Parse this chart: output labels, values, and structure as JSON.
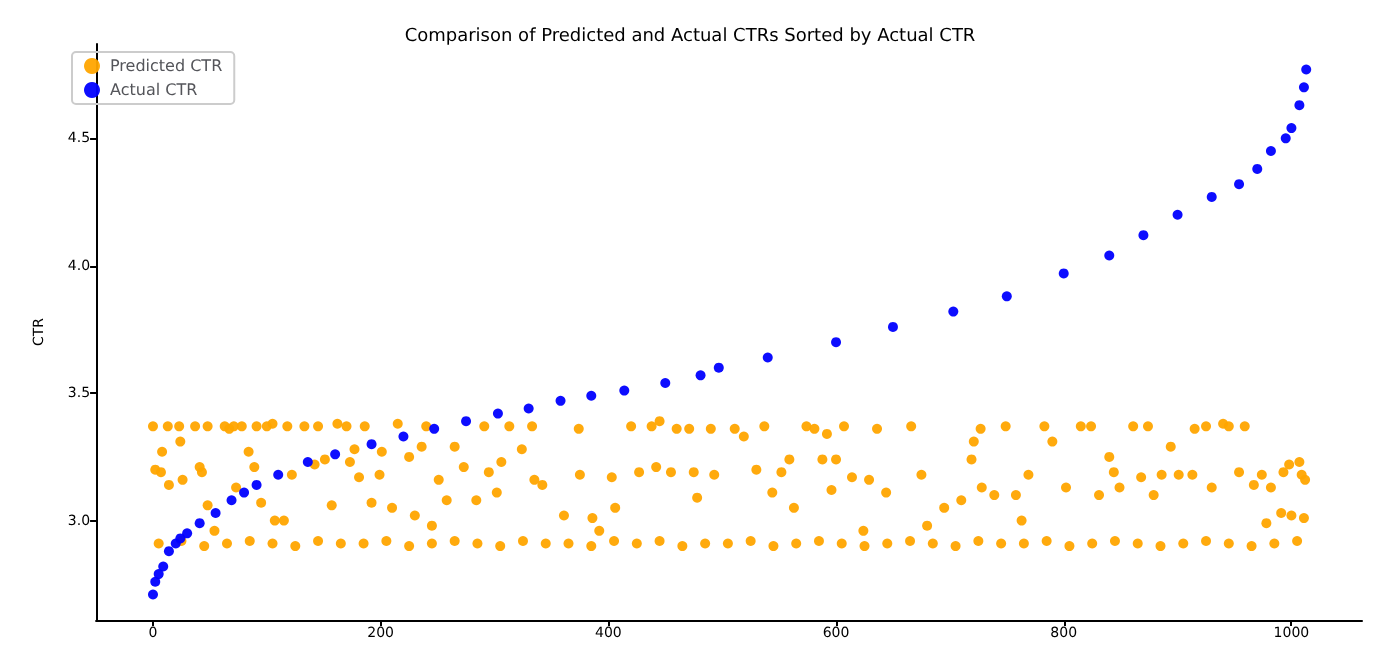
{
  "chart_data": {
    "type": "scatter",
    "title": "Comparison of Predicted and Actual CTRs Sorted by Actual CTR",
    "ylabel": "CTR",
    "xlim": [
      -50,
      1062
    ],
    "ylim": [
      2.61,
      4.87
    ],
    "xticks": [
      0,
      200,
      400,
      600,
      800,
      1000
    ],
    "yticks": [
      {
        "value": 3,
        "label": "3.0"
      },
      {
        "value": 3.5,
        "label": "3.5"
      },
      {
        "value": 4,
        "label": "4.0"
      },
      {
        "value": 4.5,
        "label": "4.5"
      }
    ],
    "legend": "top left",
    "grid": false,
    "marker": "circle",
    "series": [
      {
        "name": "Predicted CTR",
        "color": "#ffa500",
        "x": [
          0,
          2,
          7,
          8,
          13,
          14,
          23,
          24,
          26,
          37,
          41,
          43,
          48,
          48,
          54,
          63,
          67,
          71,
          73,
          78,
          84,
          89,
          91,
          95,
          100,
          105,
          107,
          115,
          118,
          122,
          133,
          142,
          145,
          151,
          157,
          162,
          170,
          173,
          177,
          181,
          186,
          192,
          199,
          201,
          210,
          215,
          220,
          225,
          230,
          236,
          240,
          245,
          251,
          258,
          265,
          273,
          284,
          291,
          295,
          302,
          306,
          313,
          324,
          333,
          335,
          342,
          361,
          374,
          375,
          386,
          392,
          403,
          406,
          420,
          427,
          438,
          442,
          445,
          455,
          460,
          471,
          475,
          478,
          490,
          493,
          511,
          519,
          530,
          537,
          544,
          552,
          559,
          563,
          574,
          581,
          588,
          592,
          596,
          600,
          607,
          614,
          624,
          629,
          636,
          644,
          666,
          675,
          680,
          695,
          710,
          719,
          721,
          727,
          728,
          739,
          749,
          758,
          763,
          769,
          783,
          790,
          802,
          815,
          824,
          831,
          840,
          844,
          849,
          861,
          868,
          874,
          879,
          886,
          894,
          901,
          913,
          915,
          925,
          930,
          940,
          945,
          954,
          959,
          967,
          974,
          978,
          982,
          991,
          993,
          998,
          1000,
          1007,
          1009,
          1011,
          1012,
          5,
          25,
          45,
          65,
          85,
          105,
          125,
          145,
          165,
          185,
          205,
          225,
          245,
          265,
          285,
          305,
          325,
          345,
          365,
          385,
          405,
          425,
          445,
          465,
          485,
          505,
          525,
          545,
          565,
          585,
          605,
          625,
          645,
          665,
          685,
          705,
          725,
          745,
          765,
          785,
          805,
          825,
          845,
          865,
          885,
          905,
          925,
          945,
          965,
          985,
          1005
        ],
        "values": [
          3.37,
          3.2,
          3.19,
          3.27,
          3.37,
          3.14,
          3.37,
          3.31,
          3.16,
          3.37,
          3.21,
          3.19,
          3.37,
          3.06,
          2.96,
          3.37,
          3.36,
          3.37,
          3.13,
          3.37,
          3.27,
          3.21,
          3.37,
          3.07,
          3.37,
          3.38,
          3.0,
          3.0,
          3.37,
          3.18,
          3.37,
          3.22,
          3.37,
          3.24,
          3.06,
          3.38,
          3.37,
          3.23,
          3.28,
          3.17,
          3.37,
          3.07,
          3.18,
          3.27,
          3.05,
          3.38,
          null,
          3.25,
          3.02,
          3.29,
          3.37,
          2.98,
          3.16,
          3.08,
          3.29,
          3.21,
          3.08,
          3.37,
          3.19,
          3.11,
          3.23,
          3.37,
          3.28,
          3.37,
          3.16,
          3.14,
          3.02,
          3.36,
          3.18,
          3.01,
          2.96,
          3.17,
          3.05,
          3.37,
          3.19,
          3.37,
          3.21,
          3.39,
          3.19,
          3.36,
          3.36,
          3.19,
          3.09,
          3.36,
          3.18,
          3.36,
          3.33,
          3.2,
          3.37,
          3.11,
          3.19,
          3.24,
          3.05,
          3.37,
          3.36,
          3.24,
          3.34,
          3.12,
          3.24,
          3.37,
          3.17,
          2.96,
          3.16,
          3.36,
          3.11,
          3.37,
          3.18,
          2.98,
          3.05,
          3.08,
          3.24,
          3.31,
          3.36,
          3.13,
          3.1,
          3.37,
          3.1,
          3.0,
          3.18,
          3.37,
          3.31,
          3.13,
          3.37,
          3.37,
          3.1,
          3.25,
          3.19,
          3.13,
          3.37,
          3.17,
          3.37,
          3.1,
          3.18,
          3.29,
          3.18,
          3.18,
          3.36,
          3.37,
          3.13,
          3.38,
          3.37,
          3.19,
          3.37,
          3.14,
          3.18,
          2.99,
          3.13,
          3.03,
          3.19,
          3.22,
          3.02,
          3.23,
          3.18,
          3.01,
          3.16,
          2.91,
          2.92,
          2.9,
          2.91,
          2.92,
          2.91,
          2.9,
          2.92,
          2.91,
          2.91,
          2.92,
          2.9,
          2.91,
          2.92,
          2.91,
          2.9,
          2.92,
          2.91,
          2.91,
          2.9,
          2.92,
          2.91,
          2.92,
          2.9,
          2.91,
          2.91,
          2.92,
          2.9,
          2.91,
          2.92,
          2.91,
          2.9,
          2.91,
          2.92,
          2.91,
          2.9,
          2.92,
          2.91,
          2.91,
          2.92,
          2.9,
          2.91,
          2.92,
          2.91,
          2.9,
          2.91,
          2.92,
          2.91,
          2.9,
          2.91,
          2.92
        ]
      },
      {
        "name": "Actual CTR",
        "color": "#0000ff",
        "x": [
          0,
          2,
          5,
          9,
          14,
          20,
          24,
          30,
          41,
          55,
          69,
          80,
          91,
          110,
          136,
          160,
          192,
          220,
          247,
          275,
          303,
          330,
          358,
          385,
          414,
          450,
          481,
          497,
          540,
          600,
          650,
          703,
          750,
          800,
          840,
          870,
          900,
          930,
          954,
          970,
          982,
          995,
          1000,
          1007,
          1011,
          1013
        ],
        "values": [
          2.71,
          2.76,
          2.79,
          2.82,
          2.88,
          2.91,
          2.93,
          2.95,
          2.99,
          3.03,
          3.08,
          3.11,
          3.14,
          3.18,
          3.23,
          3.26,
          3.3,
          3.33,
          3.36,
          3.39,
          3.42,
          3.44,
          3.47,
          3.49,
          3.51,
          3.54,
          3.57,
          3.6,
          3.64,
          3.7,
          3.76,
          3.82,
          3.88,
          3.97,
          4.04,
          4.12,
          4.2,
          4.27,
          4.32,
          4.38,
          4.45,
          4.5,
          4.54,
          4.63,
          4.7,
          4.77
        ]
      }
    ]
  }
}
